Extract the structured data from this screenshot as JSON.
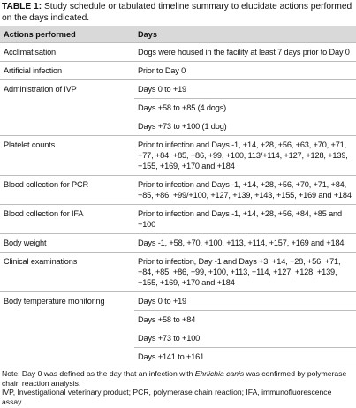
{
  "caption": {
    "label": "TABLE 1:",
    "text": "Study schedule or tabulated timeline summary to elucidate actions performed on the days indicated."
  },
  "table": {
    "header": [
      "Actions performed",
      "Days"
    ],
    "rows": [
      {
        "action": "Acclimatisation",
        "days": [
          "Dogs were housed in the facility at least 7 days prior to Day 0"
        ]
      },
      {
        "action": "Artificial infection",
        "days": [
          "Prior to Day 0"
        ]
      },
      {
        "action": "Administration of IVP",
        "days": [
          "Days 0 to +19",
          "Days +58 to +85 (4 dogs)",
          "Days +73 to +100 (1 dog)"
        ]
      },
      {
        "action": "Platelet counts",
        "days": [
          "Prior to infection and Days -1, +14, +28, +56, +63, +70, +71, +77, +84, +85, +86, +99, +100, 113/+114, +127, +128, +139, +155, +169, +170 and +184"
        ]
      },
      {
        "action": "Blood collection for PCR",
        "days": [
          "Prior to infection and Days -1, +14, +28, +56, +70, +71, +84, +85, +86, +99/+100, +127, +139, +143, +155, +169 and +184"
        ]
      },
      {
        "action": "Blood collection for IFA",
        "days": [
          "Prior to infection and Days -1, +14, +28, +56, +84, +85 and +100"
        ]
      },
      {
        "action": "Body weight",
        "days": [
          "Days -1, +58, +70, +100, +113, +114, +157, +169 and +184"
        ]
      },
      {
        "action": "Clinical examinations",
        "days": [
          "Prior to infection, Day -1 and Days +3, +14, +28, +56, +71, +84, +85, +86, +99, +100, +113, +114, +127, +128, +139, +155, +169, +170 and +184"
        ]
      },
      {
        "action": "Body temperature monitoring",
        "days": [
          "Days 0 to +19",
          "Days +58 to +84",
          "Days +73 to +100",
          "Days +141 to +161"
        ]
      }
    ]
  },
  "notes": {
    "before": "Note: Day 0 was defined as the day that an infection with ",
    "italic": "Ehrlichia canis",
    "after": " was confirmed by polymerase chain reaction analysis.",
    "abbreviations": "IVP, Investigational veterinary product; PCR, polymerase chain reaction; IFA, immunofluorescence assay."
  }
}
